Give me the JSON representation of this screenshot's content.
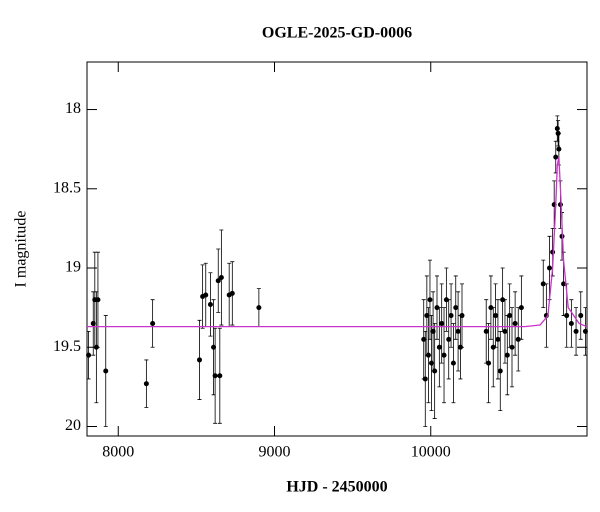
{
  "chart_data": {
    "type": "scatter",
    "title": "OGLE-2025-GD-0006",
    "x_label": "HJD - 2450000",
    "y_label": "I magnitude",
    "xlim": [
      7800,
      11000
    ],
    "xticks": [
      8000,
      9000,
      10000
    ],
    "ylim": [
      17.7,
      20.06
    ],
    "y_inverted": true,
    "yticks": [
      18,
      18.5,
      19,
      19.5,
      20
    ],
    "color": "#000000",
    "x": [
      7810,
      7840,
      7850,
      7860,
      7870,
      7920,
      8180,
      8220,
      8520,
      8540,
      8560,
      8590,
      8610,
      8620,
      8640,
      8650,
      8660,
      8710,
      8730,
      8900,
      9955,
      9965,
      9975,
      9985,
      9995,
      10005,
      10015,
      10025,
      10040,
      10055,
      10070,
      10085,
      10100,
      10115,
      10130,
      10145,
      10160,
      10175,
      10190,
      10200,
      10355,
      10370,
      10385,
      10400,
      10415,
      10430,
      10445,
      10460,
      10475,
      10490,
      10505,
      10520,
      10540,
      10560,
      10580,
      10720,
      10740,
      10760,
      10780,
      10790,
      10800,
      10810,
      10815,
      10820,
      10830,
      10840,
      10850,
      10870,
      10900,
      10930,
      10960,
      10990
    ],
    "values": [
      19.55,
      19.35,
      19.2,
      19.5,
      19.2,
      19.65,
      19.73,
      19.35,
      19.58,
      19.18,
      19.17,
      19.23,
      19.5,
      19.68,
      19.08,
      19.68,
      19.06,
      19.17,
      19.16,
      19.25,
      19.45,
      19.7,
      19.3,
      19.55,
      19.2,
      19.6,
      19.4,
      19.65,
      19.25,
      19.5,
      19.35,
      19.55,
      19.2,
      19.45,
      19.3,
      19.6,
      19.25,
      19.4,
      19.5,
      19.3,
      19.4,
      19.6,
      19.25,
      19.5,
      19.3,
      19.45,
      19.65,
      19.2,
      19.4,
      19.55,
      19.3,
      19.5,
      19.35,
      19.45,
      19.25,
      19.1,
      19.3,
      19.0,
      18.9,
      18.6,
      18.3,
      18.12,
      18.15,
      18.25,
      18.6,
      18.8,
      19.1,
      19.3,
      19.35,
      19.4,
      19.3,
      19.4
    ],
    "errors": [
      0.15,
      0.2,
      0.3,
      0.35,
      0.3,
      0.35,
      0.15,
      0.15,
      0.25,
      0.2,
      0.2,
      0.2,
      0.3,
      0.3,
      0.2,
      0.3,
      0.3,
      0.2,
      0.2,
      0.12,
      0.25,
      0.3,
      0.25,
      0.3,
      0.25,
      0.3,
      0.25,
      0.3,
      0.2,
      0.25,
      0.25,
      0.3,
      0.2,
      0.25,
      0.2,
      0.25,
      0.2,
      0.25,
      0.2,
      0.2,
      0.2,
      0.25,
      0.2,
      0.25,
      0.2,
      0.25,
      0.25,
      0.2,
      0.2,
      0.25,
      0.2,
      0.25,
      0.2,
      0.2,
      0.2,
      0.15,
      0.2,
      0.2,
      0.15,
      0.15,
      0.1,
      0.08,
      0.08,
      0.1,
      0.15,
      0.15,
      0.2,
      0.2,
      0.15,
      0.15,
      0.15,
      0.15
    ],
    "model": {
      "color": "#cc33cc",
      "x": [
        7800,
        10600,
        10700,
        10750,
        10780,
        10800,
        10810,
        10820,
        10830,
        10850,
        10880,
        10950,
        11000
      ],
      "y": [
        19.37,
        19.37,
        19.36,
        19.3,
        19.0,
        18.6,
        18.35,
        18.3,
        18.5,
        18.95,
        19.25,
        19.35,
        19.37
      ]
    }
  }
}
